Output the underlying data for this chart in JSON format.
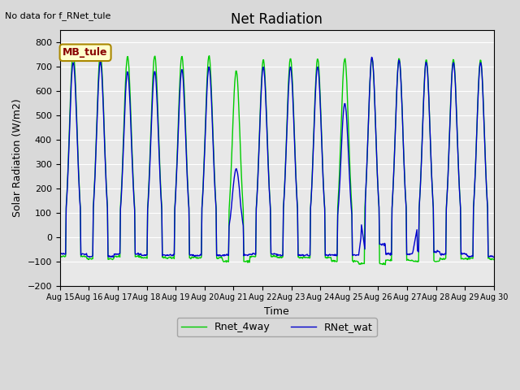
{
  "title": "Net Radiation",
  "xlabel": "Time",
  "ylabel": "Solar Radiation (W/m2)",
  "annotation": "No data for f_RNet_tule",
  "legend_label": "MB_tule",
  "series1_label": "RNet_wat",
  "series2_label": "Rnet_4way",
  "series1_color": "#0000cc",
  "series2_color": "#00cc00",
  "ylim": [
    -200,
    850
  ],
  "yticks": [
    -200,
    -100,
    0,
    100,
    200,
    300,
    400,
    500,
    600,
    700,
    800
  ],
  "num_days": 16,
  "start_day": 15,
  "end_day": 30
}
